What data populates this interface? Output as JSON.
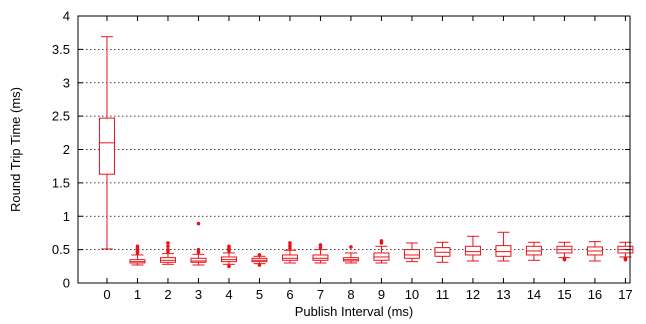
{
  "chart_data": {
    "type": "box",
    "xlabel": "Publish Interval (ms)",
    "ylabel": "Round Trip Time (ms)",
    "ylim": [
      0,
      4
    ],
    "yticks": [
      "0",
      "0.5",
      "1",
      "1.5",
      "2",
      "2.5",
      "3",
      "3.5",
      "4"
    ],
    "grid": "horizontal dotted",
    "color": "#e8141c",
    "categories": [
      "0",
      "1",
      "2",
      "3",
      "4",
      "5",
      "6",
      "7",
      "8",
      "9",
      "10",
      "11",
      "12",
      "13",
      "14",
      "15",
      "16",
      "17"
    ],
    "boxes": [
      {
        "x": "0",
        "whisker_low": 0.51,
        "q1": 1.63,
        "median": 2.1,
        "q3": 2.47,
        "whisker_high": 3.69,
        "outliers": []
      },
      {
        "x": "1",
        "whisker_low": 0.27,
        "q1": 0.3,
        "median": 0.32,
        "q3": 0.35,
        "whisker_high": 0.42,
        "outliers": [
          0.45,
          0.48,
          0.52,
          0.55
        ]
      },
      {
        "x": "2",
        "whisker_low": 0.28,
        "q1": 0.31,
        "median": 0.34,
        "q3": 0.38,
        "whisker_high": 0.44,
        "outliers": [
          0.47,
          0.5,
          0.55,
          0.6
        ]
      },
      {
        "x": "3",
        "whisker_low": 0.27,
        "q1": 0.31,
        "median": 0.33,
        "q3": 0.37,
        "whisker_high": 0.43,
        "outliers": [
          0.46,
          0.5,
          0.89
        ]
      },
      {
        "x": "4",
        "whisker_low": 0.28,
        "q1": 0.32,
        "median": 0.35,
        "q3": 0.39,
        "whisker_high": 0.45,
        "outliers": [
          0.25,
          0.48,
          0.52,
          0.55
        ]
      },
      {
        "x": "5",
        "whisker_low": 0.29,
        "q1": 0.32,
        "median": 0.34,
        "q3": 0.37,
        "whisker_high": 0.4,
        "outliers": [
          0.27,
          0.42
        ]
      },
      {
        "x": "6",
        "whisker_low": 0.3,
        "q1": 0.34,
        "median": 0.37,
        "q3": 0.42,
        "whisker_high": 0.49,
        "outliers": [
          0.52,
          0.56,
          0.6
        ]
      },
      {
        "x": "7",
        "whisker_low": 0.3,
        "q1": 0.34,
        "median": 0.37,
        "q3": 0.42,
        "whisker_high": 0.5,
        "outliers": [
          0.53,
          0.57
        ]
      },
      {
        "x": "8",
        "whisker_low": 0.3,
        "q1": 0.33,
        "median": 0.35,
        "q3": 0.38,
        "whisker_high": 0.45,
        "outliers": [
          0.54
        ]
      },
      {
        "x": "9",
        "whisker_low": 0.3,
        "q1": 0.34,
        "median": 0.39,
        "q3": 0.45,
        "whisker_high": 0.55,
        "outliers": [
          0.6,
          0.63
        ]
      },
      {
        "x": "10",
        "whisker_low": 0.32,
        "q1": 0.37,
        "median": 0.42,
        "q3": 0.5,
        "whisker_high": 0.6,
        "outliers": []
      },
      {
        "x": "11",
        "whisker_low": 0.31,
        "q1": 0.4,
        "median": 0.46,
        "q3": 0.53,
        "whisker_high": 0.61,
        "outliers": []
      },
      {
        "x": "12",
        "whisker_low": 0.33,
        "q1": 0.42,
        "median": 0.47,
        "q3": 0.55,
        "whisker_high": 0.7,
        "outliers": []
      },
      {
        "x": "13",
        "whisker_low": 0.33,
        "q1": 0.4,
        "median": 0.47,
        "q3": 0.56,
        "whisker_high": 0.76,
        "outliers": []
      },
      {
        "x": "14",
        "whisker_low": 0.34,
        "q1": 0.42,
        "median": 0.48,
        "q3": 0.55,
        "whisker_high": 0.61,
        "outliers": []
      },
      {
        "x": "15",
        "whisker_low": 0.38,
        "q1": 0.45,
        "median": 0.5,
        "q3": 0.55,
        "whisker_high": 0.61,
        "outliers": [
          0.35,
          0.37
        ]
      },
      {
        "x": "16",
        "whisker_low": 0.33,
        "q1": 0.42,
        "median": 0.48,
        "q3": 0.54,
        "whisker_high": 0.62,
        "outliers": []
      },
      {
        "x": "17",
        "whisker_low": 0.39,
        "q1": 0.45,
        "median": 0.5,
        "q3": 0.55,
        "whisker_high": 0.61,
        "outliers": [
          0.35,
          0.37
        ]
      }
    ]
  }
}
